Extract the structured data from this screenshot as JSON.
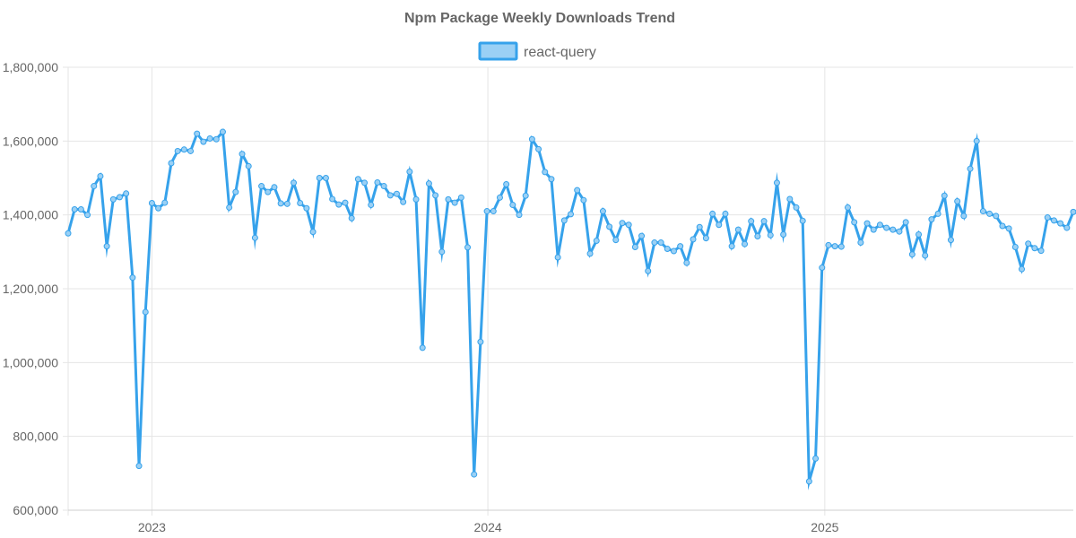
{
  "chart_data": {
    "type": "line",
    "title": "Npm Package Weekly Downloads Trend",
    "xlabel": "",
    "ylabel": "",
    "ylim": [
      600000,
      1800000
    ],
    "y_ticks": [
      600000,
      800000,
      1000000,
      1200000,
      1400000,
      1600000,
      1800000
    ],
    "y_tick_labels": [
      "600,000",
      "800,000",
      "1,000,000",
      "1,200,000",
      "1,400,000",
      "1,600,000",
      "1,800,000"
    ],
    "x_tick_labels": [
      "2023",
      "2024",
      "2025"
    ],
    "x_tick_positions": [
      "2023-01-01",
      "2024-01-01",
      "2025-01-01"
    ],
    "grid": true,
    "legend_position": "top-center",
    "series": [
      {
        "name": "react-query",
        "color": "#36a2eb",
        "fill_color": "#9ad0f5",
        "x_start": "2022-10-02",
        "x_step_days": 7,
        "values": [
          1350000,
          1415000,
          1415000,
          1400000,
          1478000,
          1505000,
          1315000,
          1442000,
          1448000,
          1458000,
          1230000,
          720000,
          1137000,
          1432000,
          1418000,
          1433000,
          1540000,
          1573000,
          1577000,
          1573000,
          1620000,
          1598000,
          1607000,
          1605000,
          1625000,
          1420000,
          1462000,
          1565000,
          1532000,
          1338000,
          1478000,
          1462000,
          1475000,
          1431000,
          1430000,
          1487000,
          1432000,
          1418000,
          1354000,
          1500000,
          1500000,
          1443000,
          1428000,
          1433000,
          1391000,
          1497000,
          1487000,
          1427000,
          1488000,
          1478000,
          1453000,
          1457000,
          1435000,
          1517000,
          1442000,
          1040000,
          1485000,
          1453000,
          1300000,
          1442000,
          1433000,
          1447000,
          1312000,
          697000,
          1056000,
          1410000,
          1410000,
          1447000,
          1483000,
          1427000,
          1400000,
          1452000,
          1605000,
          1578000,
          1516000,
          1497000,
          1285000,
          1385000,
          1402000,
          1467000,
          1440000,
          1295000,
          1330000,
          1410000,
          1368000,
          1332000,
          1378000,
          1373000,
          1313000,
          1343000,
          1248000,
          1325000,
          1325000,
          1308000,
          1302000,
          1315000,
          1270000,
          1334000,
          1367000,
          1337000,
          1403000,
          1373000,
          1403000,
          1315000,
          1360000,
          1321000,
          1383000,
          1342000,
          1383000,
          1345000,
          1487000,
          1347000,
          1443000,
          1420000,
          1384000,
          678000,
          740000,
          1257000,
          1318000,
          1315000,
          1314000,
          1420000,
          1380000,
          1325000,
          1377000,
          1360000,
          1373000,
          1365000,
          1360000,
          1355000,
          1380000,
          1293000,
          1347000,
          1290000,
          1388000,
          1403000,
          1452000,
          1332000,
          1437000,
          1397000,
          1525000,
          1600000,
          1410000,
          1403000,
          1397000,
          1370000,
          1363000,
          1313000,
          1253000,
          1322000,
          1310000,
          1303000,
          1393000,
          1385000,
          1377000,
          1365000,
          1408000
        ]
      }
    ]
  }
}
